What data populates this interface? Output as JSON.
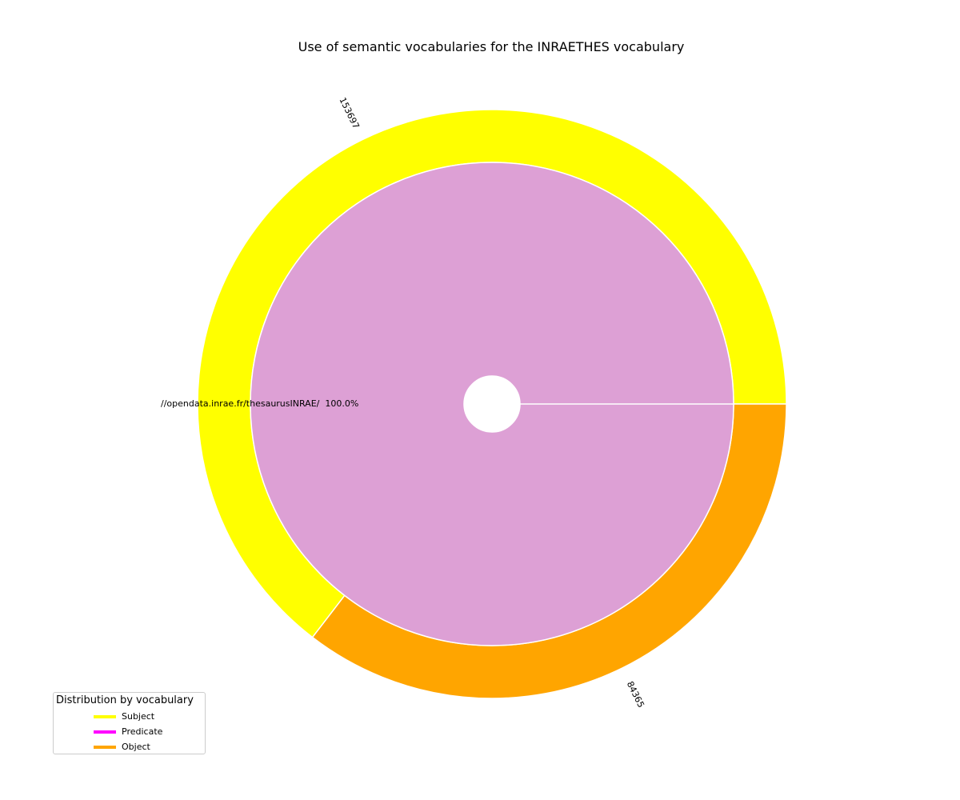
{
  "chart_data": {
    "type": "pie",
    "title": "Use of semantic vocabularies for the INRAETHES vocabulary",
    "outer_ring": {
      "categories": [
        "Subject",
        "Object"
      ],
      "values": [
        153697,
        84365
      ],
      "colors": [
        "#ffff00",
        "#ffa500"
      ]
    },
    "inner_ring": {
      "categories": [
        "//opendata.inrae.fr/thesaurusINRAE/"
      ],
      "values": [
        100.0
      ],
      "value_labels": [
        "//opendata.inrae.fr/thesaurusINRAE/  100.0%"
      ],
      "colors": [
        "#dda0d5"
      ]
    },
    "legend": {
      "title": "Distribution by vocabulary",
      "placement": "lower-left",
      "items": [
        {
          "label": "Subject",
          "color": "#ffff00"
        },
        {
          "label": "Predicate",
          "color": "#ff00ff"
        },
        {
          "label": "Object",
          "color": "#ffa500"
        }
      ]
    }
  }
}
